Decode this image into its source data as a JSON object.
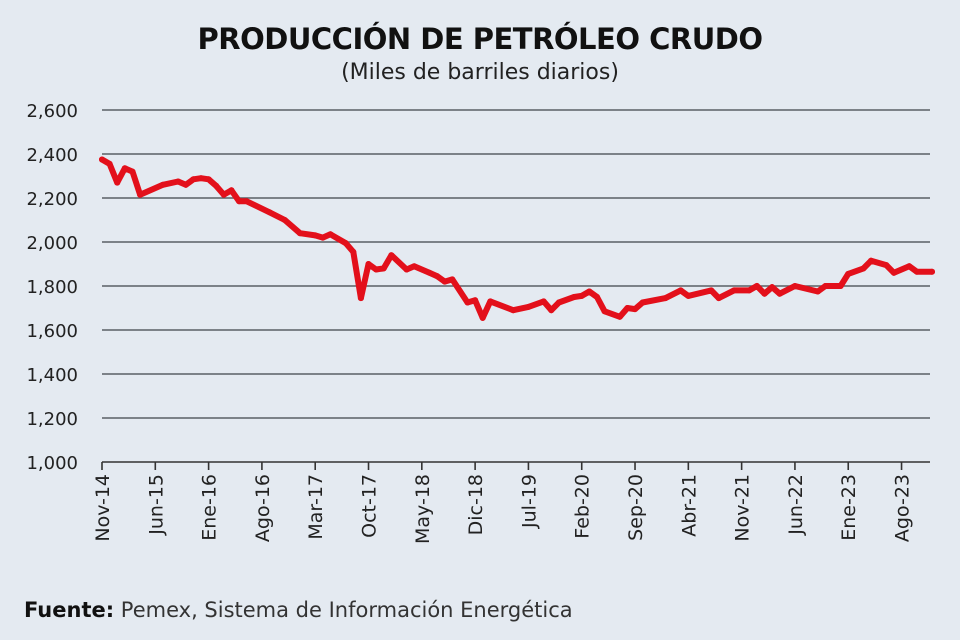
{
  "chart_data": {
    "type": "line",
    "title": "PRODUCCIÓN DE PETRÓLEO CRUDO",
    "subtitle": "(Miles de barriles diarios)",
    "xlabel": "",
    "ylabel": "",
    "ylim": [
      1000,
      2600
    ],
    "yticks": [
      1000,
      1200,
      1400,
      1600,
      1800,
      2000,
      2200,
      2400,
      2600
    ],
    "ytick_labels": [
      "1,000",
      "1,200",
      "1,400",
      "1,600",
      "1,800",
      "2,000",
      "2,200",
      "2,400",
      "2,600"
    ],
    "xlim": [
      "2014-11",
      "2023-12"
    ],
    "xticks": [
      {
        "date": "2014-11",
        "label": "Nov-14"
      },
      {
        "date": "2015-06",
        "label": "Jun-15"
      },
      {
        "date": "2016-01",
        "label": "Ene-16"
      },
      {
        "date": "2016-08",
        "label": "Ago-16"
      },
      {
        "date": "2017-03",
        "label": "Mar-17"
      },
      {
        "date": "2017-10",
        "label": "Oct-17"
      },
      {
        "date": "2018-05",
        "label": "May-18"
      },
      {
        "date": "2018-12",
        "label": "Dic-18"
      },
      {
        "date": "2019-07",
        "label": "Jul-19"
      },
      {
        "date": "2020-02",
        "label": "Feb-20"
      },
      {
        "date": "2020-09",
        "label": "Sep-20"
      },
      {
        "date": "2021-04",
        "label": "Abr-21"
      },
      {
        "date": "2021-11",
        "label": "Nov-21"
      },
      {
        "date": "2022-06",
        "label": "Jun-22"
      },
      {
        "date": "2023-01",
        "label": "Ene-23"
      },
      {
        "date": "2023-08",
        "label": "Ago-23"
      }
    ],
    "grid": true,
    "line_color": "#e3101b",
    "series": [
      {
        "x": [
          "2014-11",
          "2014-12",
          "2015-01",
          "2015-02",
          "2015-03",
          "2015-04",
          "2015-07",
          "2015-09",
          "2015-10",
          "2015-11",
          "2015-12",
          "2016-01",
          "2016-02",
          "2016-03",
          "2016-04",
          "2016-05",
          "2016-06",
          "2016-09",
          "2016-11",
          "2017-01",
          "2017-03",
          "2017-04",
          "2017-05",
          "2017-07",
          "2017-08",
          "2017-09",
          "2017-10",
          "2017-11",
          "2017-12",
          "2018-01",
          "2018-03",
          "2018-04",
          "2018-06",
          "2018-07",
          "2018-08",
          "2018-09",
          "2018-11",
          "2018-12",
          "2019-01",
          "2019-02",
          "2019-05",
          "2019-07",
          "2019-09",
          "2019-10",
          "2019-11",
          "2020-01",
          "2020-02",
          "2020-03",
          "2020-04",
          "2020-05",
          "2020-07",
          "2020-08",
          "2020-09",
          "2020-10",
          "2021-01",
          "2021-03",
          "2021-04",
          "2021-07",
          "2021-08",
          "2021-10",
          "2021-12",
          "2022-01",
          "2022-02",
          "2022-03",
          "2022-04",
          "2022-06",
          "2022-09",
          "2022-10",
          "2022-12",
          "2023-01",
          "2023-03",
          "2023-04",
          "2023-06",
          "2023-07",
          "2023-09",
          "2023-10",
          "2023-12"
        ],
        "values": [
          2375,
          2355,
          2270,
          2335,
          2320,
          2215,
          2260,
          2275,
          2260,
          2285,
          2290,
          2285,
          2255,
          2215,
          2235,
          2185,
          2185,
          2135,
          2100,
          2040,
          2030,
          2020,
          2035,
          1995,
          1955,
          1745,
          1900,
          1875,
          1880,
          1940,
          1875,
          1890,
          1860,
          1845,
          1820,
          1830,
          1725,
          1735,
          1655,
          1730,
          1690,
          1705,
          1730,
          1690,
          1725,
          1750,
          1755,
          1775,
          1750,
          1685,
          1660,
          1700,
          1695,
          1725,
          1745,
          1780,
          1755,
          1780,
          1745,
          1780,
          1780,
          1800,
          1765,
          1795,
          1765,
          1800,
          1775,
          1800,
          1800,
          1855,
          1880,
          1915,
          1895,
          1860,
          1890,
          1865,
          1865
        ]
      }
    ]
  },
  "source": {
    "label": "Fuente:",
    "text": " Pemex, Sistema de Información Energética"
  }
}
